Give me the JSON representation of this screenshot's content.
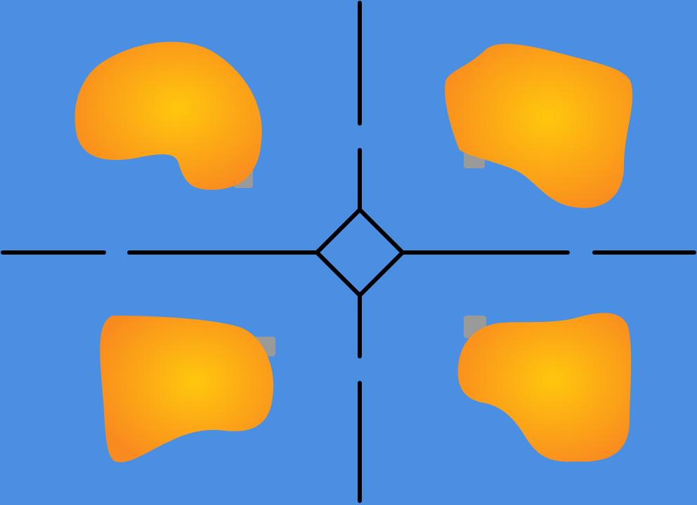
{
  "colors": {
    "board": "#4a8fe2",
    "road": "#000000",
    "blob_center": "#ffc70d",
    "blob_edge": "#f98a1f",
    "tab": "#9a9a9a"
  },
  "regions": [
    {
      "id": "top-left"
    },
    {
      "id": "top-right"
    },
    {
      "id": "bottom-left"
    },
    {
      "id": "bottom-right"
    }
  ]
}
